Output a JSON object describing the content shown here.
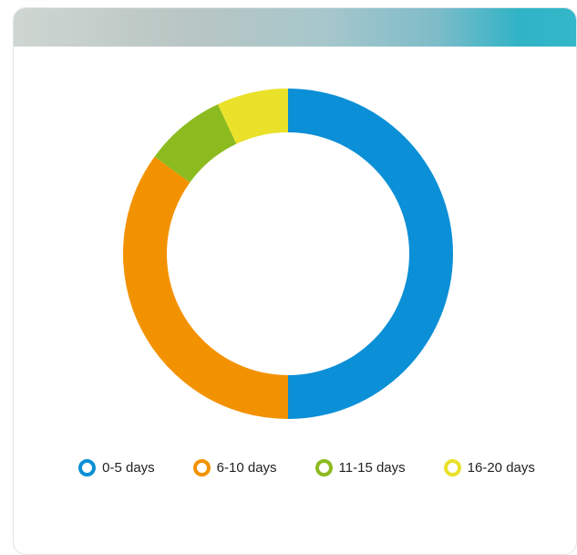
{
  "chart_data": {
    "type": "donut",
    "categories": [
      "0-5 days",
      "6-10 days",
      "11-15 days",
      "16-20 days"
    ],
    "values": [
      50,
      35,
      8,
      7
    ],
    "colors": [
      "#0b8fd6",
      "#f39200",
      "#8cbb1f",
      "#e9e12a"
    ]
  }
}
